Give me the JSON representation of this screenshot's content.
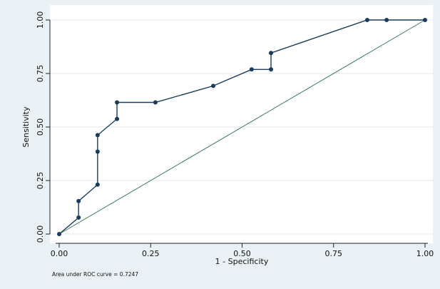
{
  "chart_data": {
    "type": "line",
    "title": "",
    "xlabel": "1 - Specificity",
    "ylabel": "Sensitivity",
    "xlim": [
      0,
      1
    ],
    "ylim": [
      0,
      1
    ],
    "x_ticks": [
      0,
      0.25,
      0.5,
      0.75,
      1
    ],
    "y_ticks": [
      0,
      0.25,
      0.5,
      0.75,
      1
    ],
    "x_tick_labels": [
      "0.00",
      "0.25",
      "0.50",
      "0.75",
      "1.00"
    ],
    "y_tick_labels": [
      "0.00",
      "0.25",
      "0.50",
      "0.75",
      "1.00"
    ],
    "grid": "horizontal",
    "legend": "none",
    "series": [
      {
        "role": "roc-curve",
        "marker": "circle",
        "x": [
          0,
          0.053,
          0.053,
          0.105,
          0.105,
          0.105,
          0.158,
          0.158,
          0.263,
          0.421,
          0.526,
          0.579,
          0.579,
          0.842,
          0.895,
          1.0
        ],
        "y": [
          0,
          0.077,
          0.154,
          0.231,
          0.385,
          0.462,
          0.538,
          0.615,
          0.615,
          0.692,
          0.769,
          0.769,
          0.846,
          1.0,
          1.0,
          1.0
        ]
      },
      {
        "role": "reference-line",
        "marker": "none",
        "x": [
          0,
          1
        ],
        "y": [
          0,
          1
        ]
      }
    ],
    "annotations": [
      "Area under ROC curve = 0.7247"
    ]
  },
  "colors": {
    "background": "#eaf1f5",
    "plot_area": "#ffffff",
    "roc_line": "#1a3b5c",
    "reference_line": "#3e7a5c",
    "grid": "#e0e8ee",
    "axis": "#222222"
  }
}
